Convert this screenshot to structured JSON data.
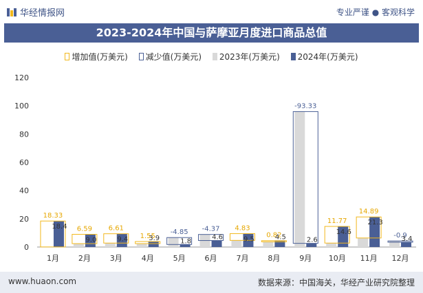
{
  "header": {
    "brand": "华经情报网",
    "tagline": "专业严谨 ● 客观科学",
    "title": "2023-2024年中国与萨摩亚月度进口商品总值"
  },
  "footer": {
    "url": "www.huaon.com",
    "source": "数据来源：中国海关，华经产业研究院整理"
  },
  "colors": {
    "increase": "#f2b81c",
    "decrease": "#4a5f95",
    "y2023": "#d9d9d9",
    "y2024": "#4a5f95",
    "title_bg": "#4a5f95"
  },
  "chart_data": {
    "type": "bar",
    "categories": [
      "1月",
      "2月",
      "3月",
      "4月",
      "5月",
      "6月",
      "7月",
      "8月",
      "9月",
      "10月",
      "11月",
      "12月"
    ],
    "series": [
      {
        "name": "2023年(万美元)",
        "values": [
          0.07,
          2.4,
          2.8,
          2.4,
          6.7,
          8.9,
          4.7,
          3.7,
          95.9,
          2.8,
          6.4,
          4.3
        ]
      },
      {
        "name": "2024年(万美元)",
        "values": [
          18.4,
          9.0,
          9.4,
          3.9,
          1.8,
          4.6,
          9.5,
          4.5,
          2.6,
          14.6,
          21.3,
          3.4
        ]
      }
    ],
    "change_series": [
      {
        "name": "增加值(万美元)",
        "kind": "increase"
      },
      {
        "name": "减少值(万美元)",
        "kind": "decrease"
      }
    ],
    "change_labels": [
      "18.33",
      "6.59",
      "6.61",
      "1.55",
      "-4.85",
      "-4.37",
      "4.83",
      "0.82",
      "-93.33",
      "11.77",
      "14.89",
      "-0.9"
    ],
    "value_labels_2024": [
      "18.4",
      "9.0",
      "9.4",
      "3.9",
      "1.8",
      "4.6",
      "9.5",
      "4.5",
      "2.6",
      "14.6",
      "21.3",
      "3.4"
    ],
    "ylim": [
      0,
      120
    ],
    "yticks": [
      "0",
      "20",
      "40",
      "60",
      "80",
      "100",
      "120"
    ],
    "legend_position": "top",
    "grid": false
  }
}
